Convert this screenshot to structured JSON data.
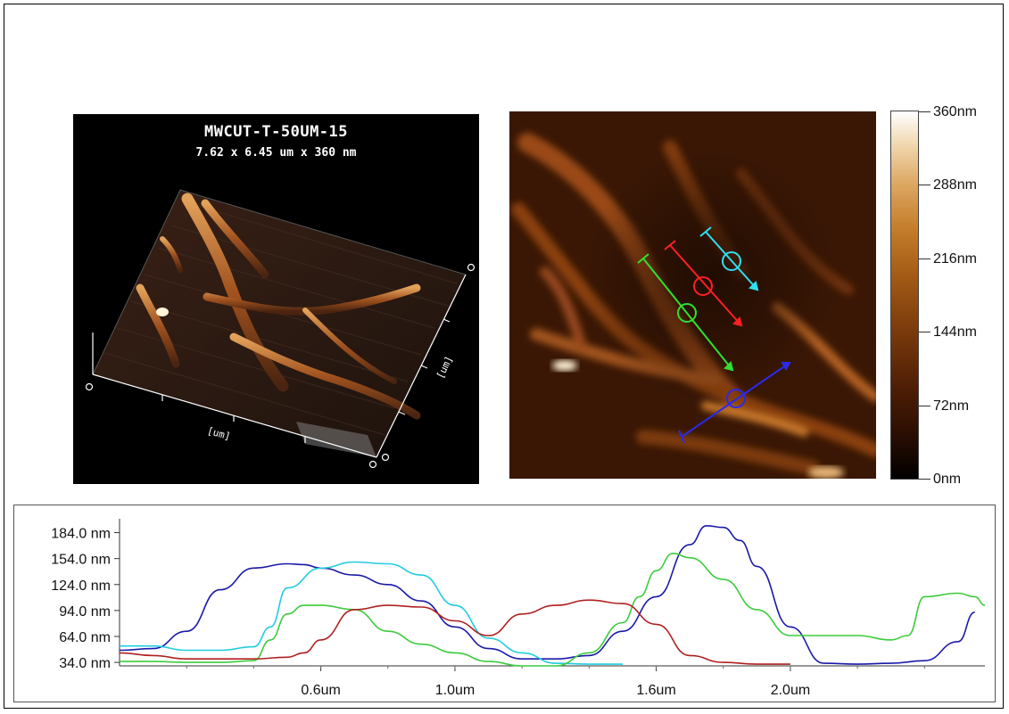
{
  "panel3d": {
    "title": "MWCUT-T-50UM-15",
    "subtitle": "7.62 x 6.45 um x 360 nm",
    "axis_unit_x": "[um]",
    "axis_unit_y": "[um]"
  },
  "colorbar": {
    "labels": [
      "360nm",
      "288nm",
      "216nm",
      "144nm",
      "72nm",
      "0nm"
    ]
  },
  "chart_data": {
    "type": "line",
    "ylabels": [
      "184.0 nm",
      "154.0 nm",
      "124.0 nm",
      "94.0 nm",
      "64.0 nm",
      "34.0 nm"
    ],
    "yticks": [
      184,
      154,
      124,
      94,
      64,
      34
    ],
    "xlabels": [
      "0.6um",
      "1.0um",
      "1.6um",
      "2.0um"
    ],
    "xticks": [
      0.6,
      1.0,
      1.6,
      2.0
    ],
    "xlim": [
      0.0,
      2.58
    ],
    "ylim": [
      30,
      200
    ],
    "series": [
      {
        "color": "#1a1aa8",
        "x": [
          0,
          0.1,
          0.2,
          0.3,
          0.4,
          0.5,
          0.55,
          0.6,
          0.7,
          0.8,
          0.9,
          1.0,
          1.1,
          1.2,
          1.3,
          1.4,
          1.5,
          1.6,
          1.7,
          1.75,
          1.8,
          1.85,
          1.9,
          2.0,
          2.1,
          2.2,
          2.3,
          2.4,
          2.5,
          2.55
        ],
        "y": [
          48,
          50,
          70,
          118,
          143,
          148,
          147,
          143,
          135,
          124,
          105,
          75,
          50,
          38,
          38,
          42,
          70,
          110,
          170,
          192,
          190,
          175,
          145,
          75,
          33,
          32,
          33,
          36,
          58,
          92
        ]
      },
      {
        "color": "#22cce0",
        "x": [
          0,
          0.1,
          0.2,
          0.3,
          0.4,
          0.45,
          0.5,
          0.6,
          0.7,
          0.8,
          0.9,
          1.0,
          1.1,
          1.2,
          1.3,
          1.4,
          1.5
        ],
        "y": [
          53,
          53,
          48,
          48,
          52,
          75,
          120,
          143,
          150,
          148,
          135,
          100,
          62,
          45,
          33,
          32,
          32
        ]
      },
      {
        "color": "#3ccc3c",
        "x": [
          0,
          0.1,
          0.2,
          0.3,
          0.4,
          0.45,
          0.5,
          0.55,
          0.6,
          0.7,
          0.8,
          0.9,
          1.0,
          1.1,
          1.2,
          1.3,
          1.4,
          1.5,
          1.55,
          1.6,
          1.65,
          1.7,
          1.8,
          1.9,
          2.0,
          2.1,
          2.2,
          2.3,
          2.35,
          2.4,
          2.5,
          2.55,
          2.58
        ],
        "y": [
          35,
          35,
          34,
          34,
          36,
          60,
          90,
          100,
          100,
          95,
          70,
          55,
          45,
          35,
          30,
          30,
          45,
          80,
          110,
          140,
          160,
          155,
          130,
          95,
          65,
          65,
          65,
          60,
          65,
          110,
          114,
          110,
          100
        ]
      },
      {
        "color": "#b02020",
        "x": [
          0,
          0.1,
          0.2,
          0.3,
          0.4,
          0.5,
          0.55,
          0.6,
          0.7,
          0.8,
          0.9,
          1.0,
          1.1,
          1.2,
          1.3,
          1.4,
          1.5,
          1.6,
          1.7,
          1.8,
          1.9,
          2.0
        ],
        "y": [
          45,
          42,
          38,
          38,
          38,
          40,
          45,
          60,
          95,
          100,
          98,
          82,
          65,
          90,
          100,
          106,
          102,
          78,
          42,
          34,
          32,
          32
        ]
      }
    ]
  }
}
